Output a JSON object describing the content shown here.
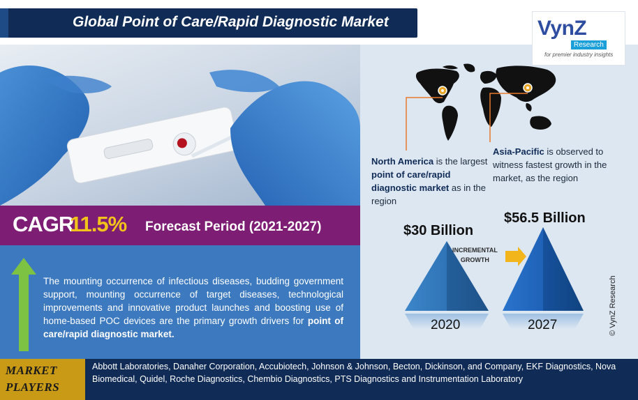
{
  "header": {
    "title": "Global Point of Care/Rapid Diagnostic Market"
  },
  "logo": {
    "brand": "VynZ",
    "sub": "Research",
    "tagline": "for premier industry insights"
  },
  "cagr": {
    "label": "CAGR",
    "value": "11.5%",
    "forecast": "Forecast Period (2021-2027)"
  },
  "description": {
    "text": "The mounting occurrence of infectious diseases, budding government support, mounting occurrence of target diseases, technological improvements and innovative product launches and boosting use of home-based POC devices are the primary growth drivers for ",
    "highlight": "point of care/rapid diagnostic market."
  },
  "regions": {
    "north_america": {
      "name": "North America",
      "text1": " is the largest ",
      "highlight": "point of care/rapid diagnostic market",
      "text2": " as in the region"
    },
    "asia_pacific": {
      "name": "Asia-Pacific",
      "text": " is observed to witness fastest growth in the market, as the region"
    }
  },
  "growth": {
    "value_2020": "$30 Billion",
    "value_2027": "$56.5 Billion",
    "incremental_line1": "INCREMENTAL",
    "incremental_line2": "GROWTH",
    "year_2020": "2020",
    "year_2027": "2027",
    "copyright": "© VynZ Research"
  },
  "players": {
    "label_line1": "MARKET",
    "label_line2": "PLAYERS",
    "text": "Abbott Laboratories, Danaher Corporation, Accubiotech, Johnson & Johnson, Becton, Dickinson, and Company, EKF Diagnostics, Nova Biomedical, Quidel, Roche Diagnostics, Chembio Diagnostics, PTS Diagnostics and Instrumentation Laboratory"
  },
  "colors": {
    "navy": "#0f2b56",
    "purple": "#7d1d74",
    "gold": "#f2c31b",
    "blue_panel": "#3c79be",
    "light_panel": "#dde7f2",
    "orange_line": "#e8792a",
    "arrow_green": "#7dc242"
  }
}
